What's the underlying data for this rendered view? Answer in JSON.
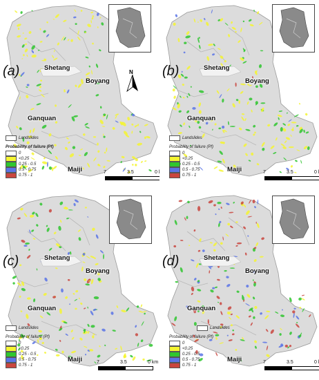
{
  "panels": [
    {
      "id": "a",
      "label": "(a)",
      "legend_title_bold": true
    },
    {
      "id": "b",
      "label": "(b)",
      "legend_title_bold": false
    },
    {
      "id": "c",
      "label": "(c)",
      "legend_title_bold": false
    },
    {
      "id": "d",
      "label": "(d)",
      "legend_title_bold": false
    }
  ],
  "towns": {
    "shetang": "Shetang",
    "boyang": "Boyang",
    "ganquan": "Ganquan",
    "maiji": "Maiji"
  },
  "north_label": "N",
  "legend": {
    "landslides": "Landslides",
    "pf_title": "Probability of failure (Pf)",
    "classes": [
      {
        "label": "0",
        "color": "#ffffff"
      },
      {
        "label": "<0.25",
        "color": "#f5f531"
      },
      {
        "label": "0.25 - 0.5",
        "color": "#2fc62f"
      },
      {
        "label": "0.5 - 0.75",
        "color": "#5a74e6"
      },
      {
        "label": "0.75 - 1",
        "color": "#c9463f"
      }
    ]
  },
  "scale": {
    "t0": "7",
    "t1": "3.5",
    "t2": "0 km"
  }
}
